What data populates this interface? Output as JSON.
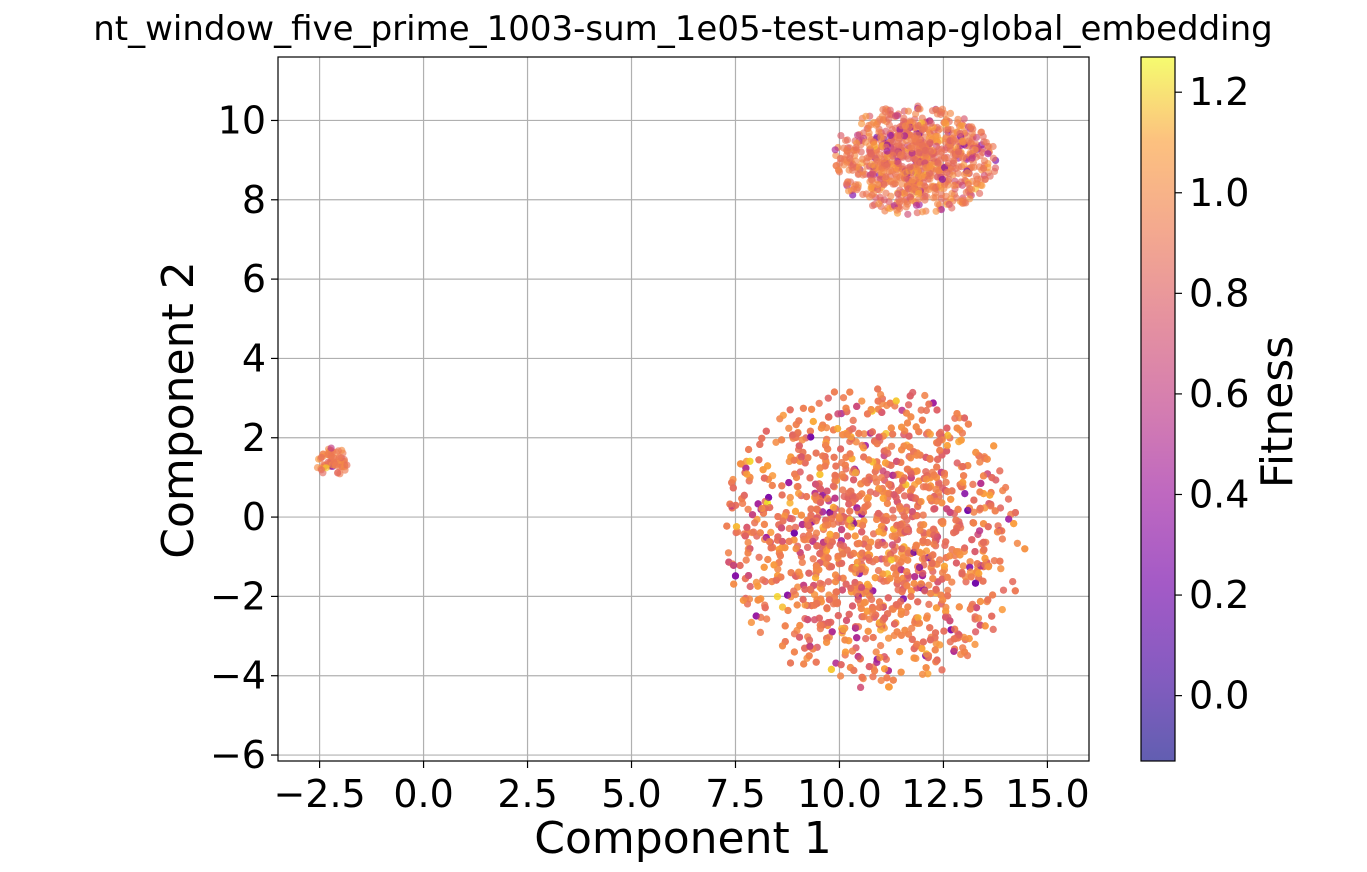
{
  "chart_data": {
    "type": "scatter",
    "title": "nt_window_five_prime_1003-sum_1e05-test-umap-global_embedding",
    "xlabel": "Component 1",
    "ylabel": "Component 2",
    "xlim": [
      -3.5,
      16.0
    ],
    "ylim": [
      -6.15,
      11.6
    ],
    "x_ticks": [
      -2.5,
      0.0,
      2.5,
      5.0,
      7.5,
      10.0,
      12.5,
      15.0
    ],
    "x_tick_labels": [
      "−2.5",
      "0.0",
      "2.5",
      "5.0",
      "7.5",
      "10.0",
      "12.5",
      "15.0"
    ],
    "y_ticks": [
      -6,
      -4,
      -2,
      0,
      2,
      4,
      6,
      8,
      10
    ],
    "y_tick_labels": [
      "−6",
      "−4",
      "−2",
      "0",
      "2",
      "4",
      "6",
      "8",
      "10"
    ],
    "grid": true,
    "point_alpha": 0.65,
    "colormap": "plasma",
    "colorbar": {
      "label": "Fitness",
      "range": [
        -0.13,
        1.27
      ],
      "ticks": [
        0.0,
        0.2,
        0.4,
        0.6,
        0.8,
        1.0,
        1.2
      ],
      "tick_labels": [
        "0.0",
        "0.2",
        "0.4",
        "0.6",
        "0.8",
        "1.0",
        "1.2"
      ]
    },
    "clusters": [
      {
        "name": "small-left",
        "center": [
          -2.2,
          1.4
        ],
        "spread": [
          0.25,
          0.25
        ],
        "n": 70,
        "fitness_mean": 0.95
      },
      {
        "name": "upper-right",
        "center": [
          11.8,
          9.0
        ],
        "spread": [
          1.3,
          0.9
        ],
        "n": 900,
        "fitness_mean": 0.92
      },
      {
        "name": "large-lower",
        "center": [
          10.8,
          -0.5
        ],
        "spread": [
          2.4,
          2.5
        ],
        "n": 3200,
        "fitness_mean": 0.93
      }
    ]
  }
}
